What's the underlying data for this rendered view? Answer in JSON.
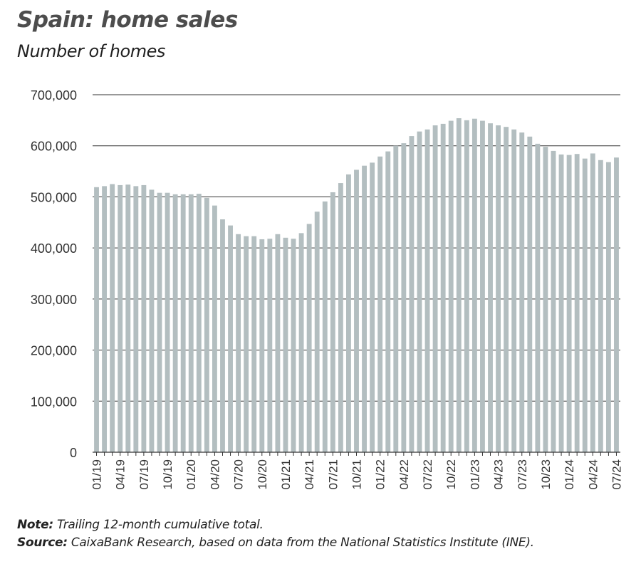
{
  "chart_data": {
    "type": "bar",
    "title": "Spain: home sales",
    "subtitle": "Number of homes",
    "xlabel": "",
    "ylabel": "",
    "ylim": [
      0,
      700000
    ],
    "yticks": [
      "0",
      "100,000",
      "200,000",
      "300,000",
      "400,000",
      "500,000",
      "600,000",
      "700,000"
    ],
    "grid": true,
    "bar_color": "#b3bec0",
    "categories": [
      "01/19",
      "02/19",
      "03/19",
      "04/19",
      "05/19",
      "06/19",
      "07/19",
      "08/19",
      "09/19",
      "10/19",
      "11/19",
      "12/19",
      "01/20",
      "02/20",
      "03/20",
      "04/20",
      "05/20",
      "06/20",
      "07/20",
      "08/20",
      "09/20",
      "10/20",
      "11/20",
      "12/20",
      "01/21",
      "02/21",
      "03/21",
      "04/21",
      "05/21",
      "06/21",
      "07/21",
      "08/21",
      "09/21",
      "10/21",
      "11/21",
      "12/21",
      "01/22",
      "02/22",
      "03/22",
      "04/22",
      "05/22",
      "06/22",
      "07/22",
      "08/22",
      "09/22",
      "10/22",
      "11/22",
      "12/22",
      "01/23",
      "02/23",
      "03/23",
      "04/23",
      "05/23",
      "06/23",
      "07/23",
      "08/23",
      "09/23",
      "10/23",
      "11/23",
      "12/23",
      "01/24",
      "02/24",
      "03/24",
      "04/24",
      "05/24",
      "06/24",
      "07/24"
    ],
    "xticks": [
      "01/19",
      "04/19",
      "07/19",
      "10/19",
      "01/20",
      "04/20",
      "07/20",
      "10/20",
      "01/21",
      "04/21",
      "07/21",
      "10/21",
      "01/22",
      "04/22",
      "07/22",
      "10/22",
      "01/23",
      "04/23",
      "07/23",
      "10/23",
      "01/24",
      "04/24",
      "07/24"
    ],
    "values": [
      519000,
      521000,
      525000,
      523000,
      524000,
      521000,
      523000,
      514000,
      508000,
      508000,
      505000,
      505000,
      505000,
      506000,
      498000,
      483000,
      456000,
      444000,
      427000,
      423000,
      423000,
      417000,
      418000,
      427000,
      420000,
      418000,
      429000,
      447000,
      471000,
      491000,
      509000,
      527000,
      544000,
      553000,
      561000,
      567000,
      579000,
      589000,
      600000,
      605000,
      619000,
      628000,
      632000,
      640000,
      643000,
      649000,
      654000,
      650000,
      653000,
      649000,
      644000,
      640000,
      637000,
      632000,
      626000,
      618000,
      604000,
      598000,
      590000,
      583000,
      582000,
      584000,
      575000,
      585000,
      572000,
      568000,
      577000
    ]
  },
  "notes": {
    "note_label": "Note:",
    "note_text": " Trailing 12-month cumulative total.",
    "source_label": "Source:",
    "source_text": " CaixaBank Research, based on data from the National Statistics Institute (INE)."
  }
}
